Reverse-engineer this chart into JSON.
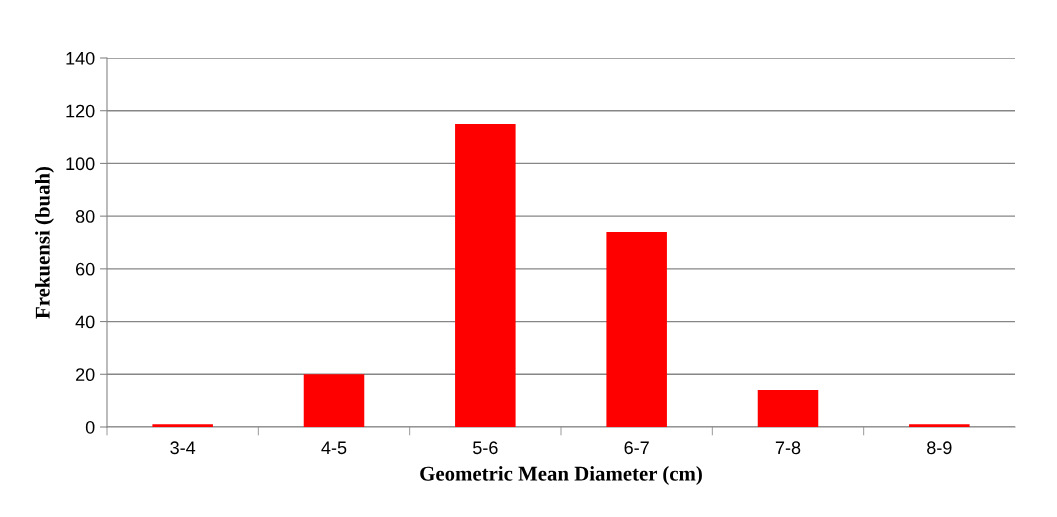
{
  "chart_data": {
    "type": "bar",
    "xlabel": "Geometric Mean Diameter (cm)",
    "ylabel": "Frekuensi (buah)",
    "categories": [
      "3-4",
      "4-5",
      "5-6",
      "6-7",
      "7-8",
      "8-9"
    ],
    "values": [
      1,
      20,
      115,
      74,
      14,
      1
    ],
    "color": "#ff0000",
    "ylim": [
      0,
      140
    ],
    "yticks": [
      0,
      20,
      40,
      60,
      80,
      100,
      120,
      140
    ],
    "grid": "y",
    "legend": false
  }
}
